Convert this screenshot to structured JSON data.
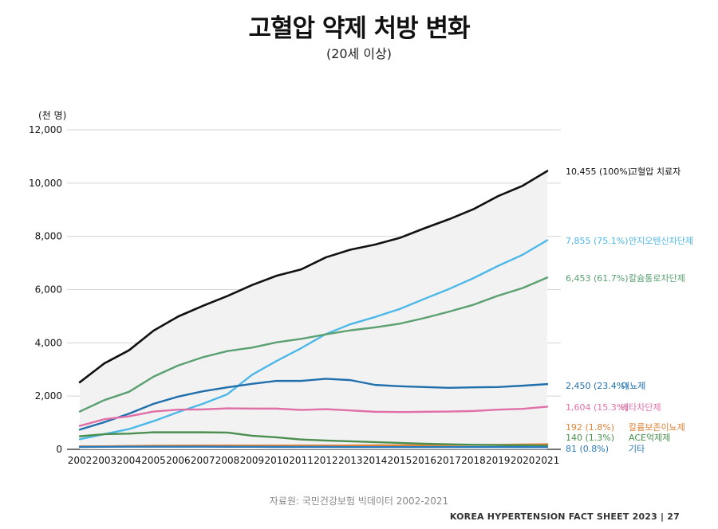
{
  "title": "고혈압 약제 처방 변화",
  "subtitle": "(20세 이상)",
  "unit_label": "(천 명)",
  "source": "자료원: 국민건강보험 빅데이터 2002-2021",
  "footer": "KOREA HYPERTENSION FACT SHEET 2023 | 27",
  "chart_data": {
    "type": "line",
    "x": [
      2002,
      2003,
      2004,
      2005,
      2006,
      2007,
      2008,
      2009,
      2010,
      2011,
      2012,
      2013,
      2014,
      2015,
      2016,
      2017,
      2018,
      2019,
      2020,
      2021
    ],
    "x_tick_labels": [
      "2002",
      "2003",
      "2004",
      "2005",
      "2006",
      "2007",
      "2008",
      "2009",
      "2010",
      "2011",
      "2012",
      "2013",
      "2014",
      "2015",
      "2016",
      "2017",
      "2018",
      "2019",
      "2020",
      "2021"
    ],
    "ylim": [
      0,
      12000
    ],
    "y_ticks": [
      0,
      2000,
      4000,
      6000,
      8000,
      10000,
      12000
    ],
    "y_tick_labels": [
      "0",
      "2,000",
      "4,000",
      "6,000",
      "8,000",
      "10,000",
      "12,000"
    ],
    "grid": true,
    "series": [
      {
        "name": "고혈압 치료자",
        "label": "10,455 (100%)",
        "color": "#111111",
        "shaded": true,
        "values": [
          2520,
          3230,
          3720,
          4460,
          4990,
          5390,
          5760,
          6170,
          6520,
          6760,
          7210,
          7500,
          7690,
          7940,
          8300,
          8640,
          9020,
          9510,
          9900,
          10455
        ]
      },
      {
        "name": "안지오텐신차단제",
        "label": "7,855 (75.1%)",
        "color": "#4db8e8",
        "values": [
          380,
          570,
          760,
          1060,
          1400,
          1710,
          2070,
          2800,
          3320,
          3800,
          4330,
          4700,
          4970,
          5270,
          5650,
          6020,
          6430,
          6890,
          7310,
          7855
        ]
      },
      {
        "name": "칼슘통로차단제",
        "label": "6,453 (61.7%)",
        "color": "#5aa071",
        "values": [
          1420,
          1850,
          2160,
          2730,
          3150,
          3460,
          3690,
          3820,
          4020,
          4150,
          4320,
          4470,
          4580,
          4720,
          4930,
          5170,
          5430,
          5770,
          6060,
          6453
        ]
      },
      {
        "name": "이뇨제",
        "label": "2,450 (23.4%)",
        "color": "#1f6fad",
        "values": [
          740,
          1020,
          1340,
          1710,
          1980,
          2180,
          2330,
          2460,
          2570,
          2570,
          2650,
          2600,
          2420,
          2370,
          2340,
          2310,
          2330,
          2340,
          2390,
          2450
        ]
      },
      {
        "name": "베타차단제",
        "label": "1,604 (15.3%)",
        "color": "#e070a8",
        "values": [
          880,
          1130,
          1240,
          1420,
          1490,
          1500,
          1540,
          1530,
          1530,
          1480,
          1510,
          1460,
          1410,
          1400,
          1410,
          1420,
          1440,
          1490,
          1520,
          1604
        ]
      },
      {
        "name": "칼륨보존이뇨제",
        "label": "192 (1.8%)",
        "color": "#e0843a",
        "values": [
          110,
          115,
          125,
          135,
          140,
          145,
          145,
          145,
          145,
          145,
          145,
          145,
          150,
          150,
          155,
          160,
          165,
          170,
          180,
          192
        ]
      },
      {
        "name": "ACE억제제",
        "label": "140 (1.3%)",
        "color": "#4a8f4f",
        "values": [
          490,
          570,
          590,
          640,
          640,
          640,
          630,
          510,
          450,
          370,
          330,
          300,
          270,
          240,
          210,
          190,
          170,
          160,
          150,
          140
        ]
      },
      {
        "name": "기타",
        "label": "81 (0.8%)",
        "color": "#2a7bbd",
        "values": [
          90,
          95,
          100,
          100,
          100,
          100,
          95,
          95,
          90,
          90,
          90,
          85,
          85,
          85,
          85,
          85,
          85,
          85,
          82,
          81
        ]
      }
    ]
  }
}
